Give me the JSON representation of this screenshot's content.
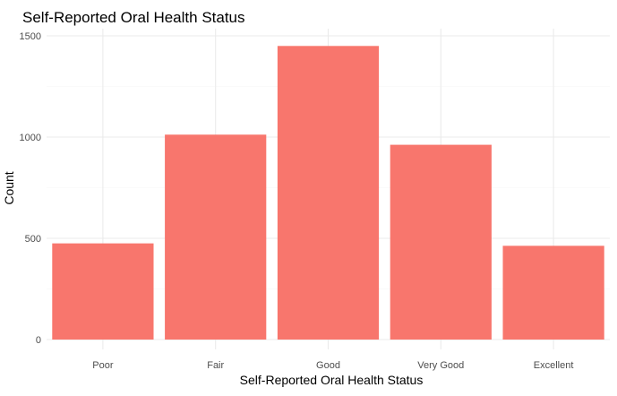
{
  "chart_data": {
    "type": "bar",
    "title": "Self-Reported Oral Health Status",
    "xlabel": "Self-Reported Oral Health Status",
    "ylabel": "Count",
    "categories": [
      "Poor",
      "Fair",
      "Good",
      "Very Good",
      "Excellent"
    ],
    "values": [
      475,
      1012,
      1450,
      962,
      463
    ],
    "ylim": [
      0,
      1550
    ],
    "yticks": [
      0,
      500,
      1000,
      1500
    ],
    "ytick_labels": [
      "0",
      "500",
      "1000",
      "1500"
    ],
    "grid": true,
    "legend": "none",
    "bar_color": "#F8766D",
    "grid_major_color": "#EBEBEB",
    "grid_minor_color": "#F5F5F5"
  }
}
